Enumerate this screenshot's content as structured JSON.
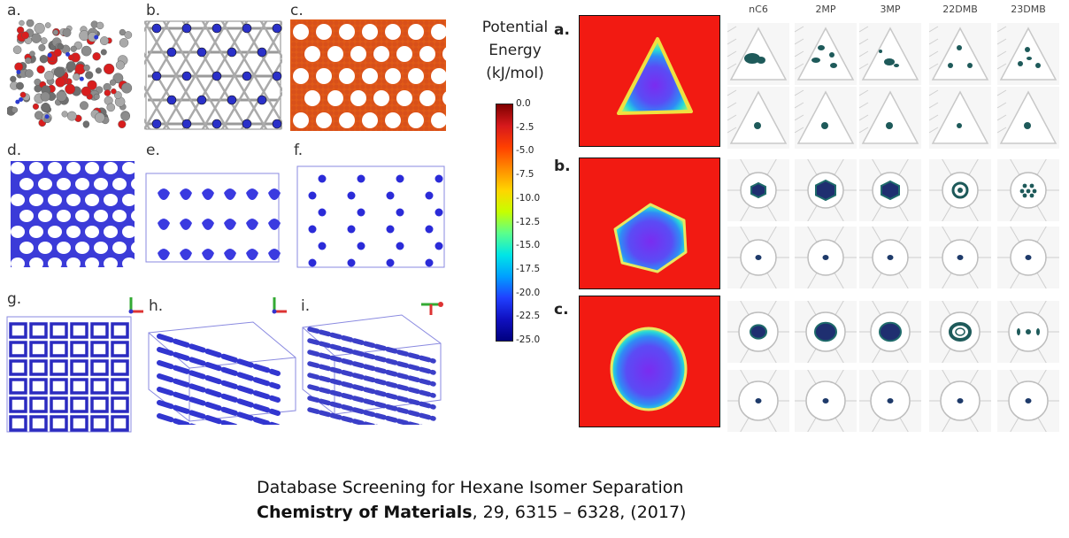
{
  "structure_panels": {
    "labels": [
      "a.",
      "b.",
      "c.",
      "d.",
      "e.",
      "f.",
      "g.",
      "h.",
      "i."
    ]
  },
  "colorbar": {
    "title_lines": [
      "Potential",
      "Energy",
      "(kJ/mol)"
    ],
    "ticks": [
      "0.0",
      "-2.5",
      "-5.0",
      "-7.5",
      "-10.0",
      "-12.5",
      "-15.0",
      "-17.5",
      "-20.0",
      "-22.5",
      "-25.0"
    ],
    "gradient_colors": [
      "#7f0000",
      "#d7191c",
      "#ff4000",
      "#ff8c00",
      "#ffd500",
      "#c6ff00",
      "#5aff8c",
      "#00e6e6",
      "#00a0ff",
      "#2040ff",
      "#1010c0",
      "#00007f"
    ]
  },
  "energy_rows": {
    "labels": [
      "a.",
      "b.",
      "c."
    ],
    "background_color": "#f21a12"
  },
  "isomer_grid": {
    "columns": [
      "nC6",
      "2MP",
      "3MP",
      "22DMB",
      "23DMB"
    ]
  },
  "caption": {
    "title": "Database Screening for Hexane Isomer Separation",
    "journal": "Chemistry of Materials",
    "citation_rest": ", 29, 6315 – 6328, (2017)"
  }
}
